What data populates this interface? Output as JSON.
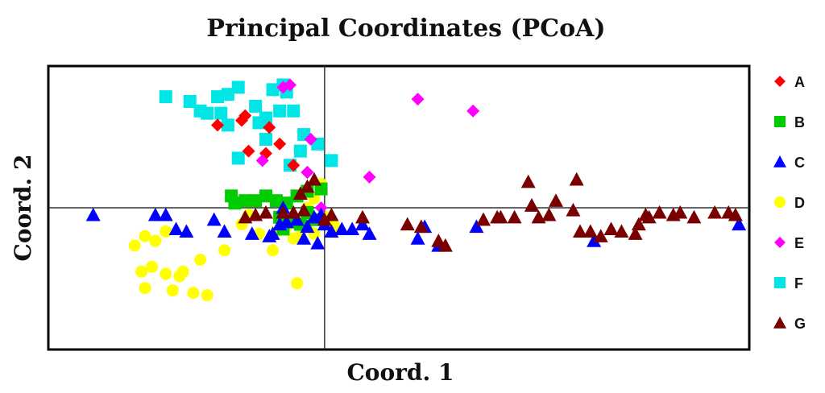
{
  "chart_data": {
    "type": "scatter",
    "title": "Principal Coordinates (PCoA)",
    "xlabel": "Coord. 1",
    "ylabel": "Coord. 2",
    "xlim": [
      -0.8,
      1.23
    ],
    "ylim": [
      -0.6,
      0.6
    ],
    "grid": false,
    "legend_position": "right",
    "series": [
      {
        "name": "A",
        "color": "#ff0000",
        "marker": "diamond",
        "points": [
          [
            -0.31,
            0.35
          ],
          [
            -0.24,
            0.37
          ],
          [
            -0.23,
            0.39
          ],
          [
            -0.16,
            0.34
          ],
          [
            -0.13,
            0.27
          ],
          [
            -0.22,
            0.24
          ],
          [
            -0.17,
            0.23
          ],
          [
            -0.09,
            0.18
          ],
          [
            -0.05,
            0.15
          ]
        ]
      },
      {
        "name": "B",
        "color": "#00cc00",
        "marker": "square",
        "points": [
          [
            -0.27,
            0.05
          ],
          [
            -0.26,
            0.02
          ],
          [
            -0.23,
            0.03
          ],
          [
            -0.2,
            0.03
          ],
          [
            -0.17,
            0.05
          ],
          [
            -0.14,
            0.03
          ],
          [
            -0.11,
            0.02
          ],
          [
            -0.08,
            0.05
          ],
          [
            -0.05,
            0.07
          ],
          [
            -0.01,
            0.08
          ],
          [
            -0.13,
            -0.04
          ],
          [
            -0.1,
            -0.06
          ],
          [
            -0.12,
            -0.09
          ],
          [
            -0.07,
            -0.07
          ],
          [
            -0.05,
            -0.02
          ],
          [
            -0.03,
            -0.05
          ]
        ]
      },
      {
        "name": "C",
        "color": "#0000ff",
        "marker": "triangle",
        "points": [
          [
            -0.67,
            -0.03
          ],
          [
            -0.49,
            -0.03
          ],
          [
            -0.46,
            -0.03
          ],
          [
            -0.43,
            -0.09
          ],
          [
            -0.4,
            -0.1
          ],
          [
            -0.32,
            -0.05
          ],
          [
            -0.29,
            -0.1
          ],
          [
            -0.21,
            -0.11
          ],
          [
            -0.15,
            -0.11
          ],
          [
            -0.13,
            -0.07
          ],
          [
            -0.11,
            -0.06
          ],
          [
            -0.08,
            -0.05
          ],
          [
            -0.05,
            -0.08
          ],
          [
            -0.03,
            -0.04
          ],
          [
            -0.01,
            -0.03
          ],
          [
            0.0,
            -0.07
          ],
          [
            0.02,
            -0.1
          ],
          [
            -0.02,
            -0.15
          ],
          [
            0.05,
            -0.09
          ],
          [
            0.08,
            -0.09
          ],
          [
            0.11,
            -0.07
          ],
          [
            0.13,
            -0.11
          ],
          [
            -0.06,
            -0.13
          ],
          [
            0.27,
            -0.13
          ],
          [
            0.29,
            -0.08
          ],
          [
            0.33,
            -0.16
          ],
          [
            0.44,
            -0.08
          ],
          [
            0.6,
            0.01
          ],
          [
            0.78,
            -0.14
          ],
          [
            1.2,
            -0.07
          ],
          [
            -0.12,
            0.0
          ],
          [
            -0.16,
            -0.12
          ]
        ]
      },
      {
        "name": "D",
        "color": "#ffff00",
        "marker": "circle",
        "points": [
          [
            -0.55,
            -0.16
          ],
          [
            -0.52,
            -0.12
          ],
          [
            -0.49,
            -0.14
          ],
          [
            -0.46,
            -0.1
          ],
          [
            -0.53,
            -0.27
          ],
          [
            -0.5,
            -0.25
          ],
          [
            -0.46,
            -0.28
          ],
          [
            -0.42,
            -0.29
          ],
          [
            -0.52,
            -0.34
          ],
          [
            -0.44,
            -0.35
          ],
          [
            -0.38,
            -0.36
          ],
          [
            -0.34,
            -0.37
          ],
          [
            -0.41,
            -0.27
          ],
          [
            -0.36,
            -0.22
          ],
          [
            -0.29,
            -0.18
          ],
          [
            -0.24,
            -0.07
          ],
          [
            -0.22,
            -0.03
          ],
          [
            -0.19,
            -0.11
          ],
          [
            -0.14,
            -0.1
          ],
          [
            -0.11,
            -0.08
          ],
          [
            -0.09,
            -0.13
          ],
          [
            -0.07,
            -0.12
          ],
          [
            -0.05,
            -0.08
          ],
          [
            -0.08,
            -0.32
          ],
          [
            -0.15,
            -0.18
          ],
          [
            -0.03,
            -0.11
          ],
          [
            0.01,
            -0.04
          ],
          [
            0.03,
            -0.08
          ],
          [
            -0.05,
            0.0
          ],
          [
            -0.03,
            0.04
          ],
          [
            -0.01,
            0.1
          ]
        ]
      },
      {
        "name": "E",
        "color": "#ff00ff",
        "marker": "diamond",
        "points": [
          [
            -0.12,
            0.51
          ],
          [
            -0.1,
            0.52
          ],
          [
            0.27,
            0.46
          ],
          [
            0.43,
            0.41
          ],
          [
            -0.04,
            0.29
          ],
          [
            0.13,
            0.13
          ],
          [
            -0.18,
            0.2
          ],
          [
            -0.05,
            0.15
          ],
          [
            -0.01,
            0.0
          ]
        ]
      },
      {
        "name": "F",
        "color": "#00e5e5",
        "marker": "square",
        "points": [
          [
            -0.46,
            0.47
          ],
          [
            -0.39,
            0.45
          ],
          [
            -0.36,
            0.41
          ],
          [
            -0.34,
            0.4
          ],
          [
            -0.31,
            0.47
          ],
          [
            -0.28,
            0.48
          ],
          [
            -0.25,
            0.51
          ],
          [
            -0.2,
            0.43
          ],
          [
            -0.17,
            0.38
          ],
          [
            -0.15,
            0.5
          ],
          [
            -0.11,
            0.49
          ],
          [
            -0.12,
            0.52
          ],
          [
            -0.19,
            0.36
          ],
          [
            -0.13,
            0.41
          ],
          [
            -0.09,
            0.41
          ],
          [
            -0.02,
            0.27
          ],
          [
            -0.07,
            0.24
          ],
          [
            -0.06,
            0.31
          ],
          [
            -0.17,
            0.29
          ],
          [
            -0.28,
            0.35
          ],
          [
            -0.25,
            0.21
          ],
          [
            -0.1,
            0.18
          ],
          [
            0.02,
            0.2
          ],
          [
            -0.3,
            0.4
          ]
        ]
      },
      {
        "name": "G",
        "color": "#7a0000",
        "marker": "triangle",
        "points": [
          [
            -0.23,
            -0.04
          ],
          [
            -0.2,
            -0.03
          ],
          [
            -0.17,
            -0.02
          ],
          [
            -0.12,
            -0.02
          ],
          [
            -0.09,
            -0.02
          ],
          [
            -0.06,
            -0.01
          ],
          [
            -0.05,
            0.09
          ],
          [
            -0.07,
            0.06
          ],
          [
            -0.03,
            0.12
          ],
          [
            0.0,
            -0.05
          ],
          [
            0.02,
            -0.03
          ],
          [
            0.11,
            -0.04
          ],
          [
            0.24,
            -0.07
          ],
          [
            0.28,
            -0.08
          ],
          [
            0.33,
            -0.14
          ],
          [
            0.35,
            -0.16
          ],
          [
            0.91,
            -0.07
          ],
          [
            0.94,
            -0.04
          ],
          [
            0.97,
            -0.02
          ],
          [
            1.01,
            -0.03
          ],
          [
            1.03,
            -0.02
          ],
          [
            1.07,
            -0.04
          ],
          [
            1.13,
            -0.02
          ],
          [
            1.17,
            -0.02
          ],
          [
            1.19,
            -0.03
          ],
          [
            0.72,
            -0.01
          ],
          [
            0.74,
            -0.1
          ],
          [
            0.77,
            -0.1
          ],
          [
            0.8,
            -0.12
          ],
          [
            0.83,
            -0.09
          ],
          [
            0.86,
            -0.1
          ],
          [
            0.9,
            -0.11
          ],
          [
            0.93,
            -0.03
          ],
          [
            0.62,
            -0.04
          ],
          [
            0.65,
            -0.03
          ],
          [
            0.67,
            0.03
          ],
          [
            0.6,
            0.01
          ],
          [
            0.55,
            -0.04
          ],
          [
            0.5,
            -0.04
          ],
          [
            0.51,
            -0.04
          ],
          [
            0.46,
            -0.05
          ],
          [
            0.59,
            0.11
          ],
          [
            0.73,
            0.12
          ]
        ]
      }
    ]
  }
}
